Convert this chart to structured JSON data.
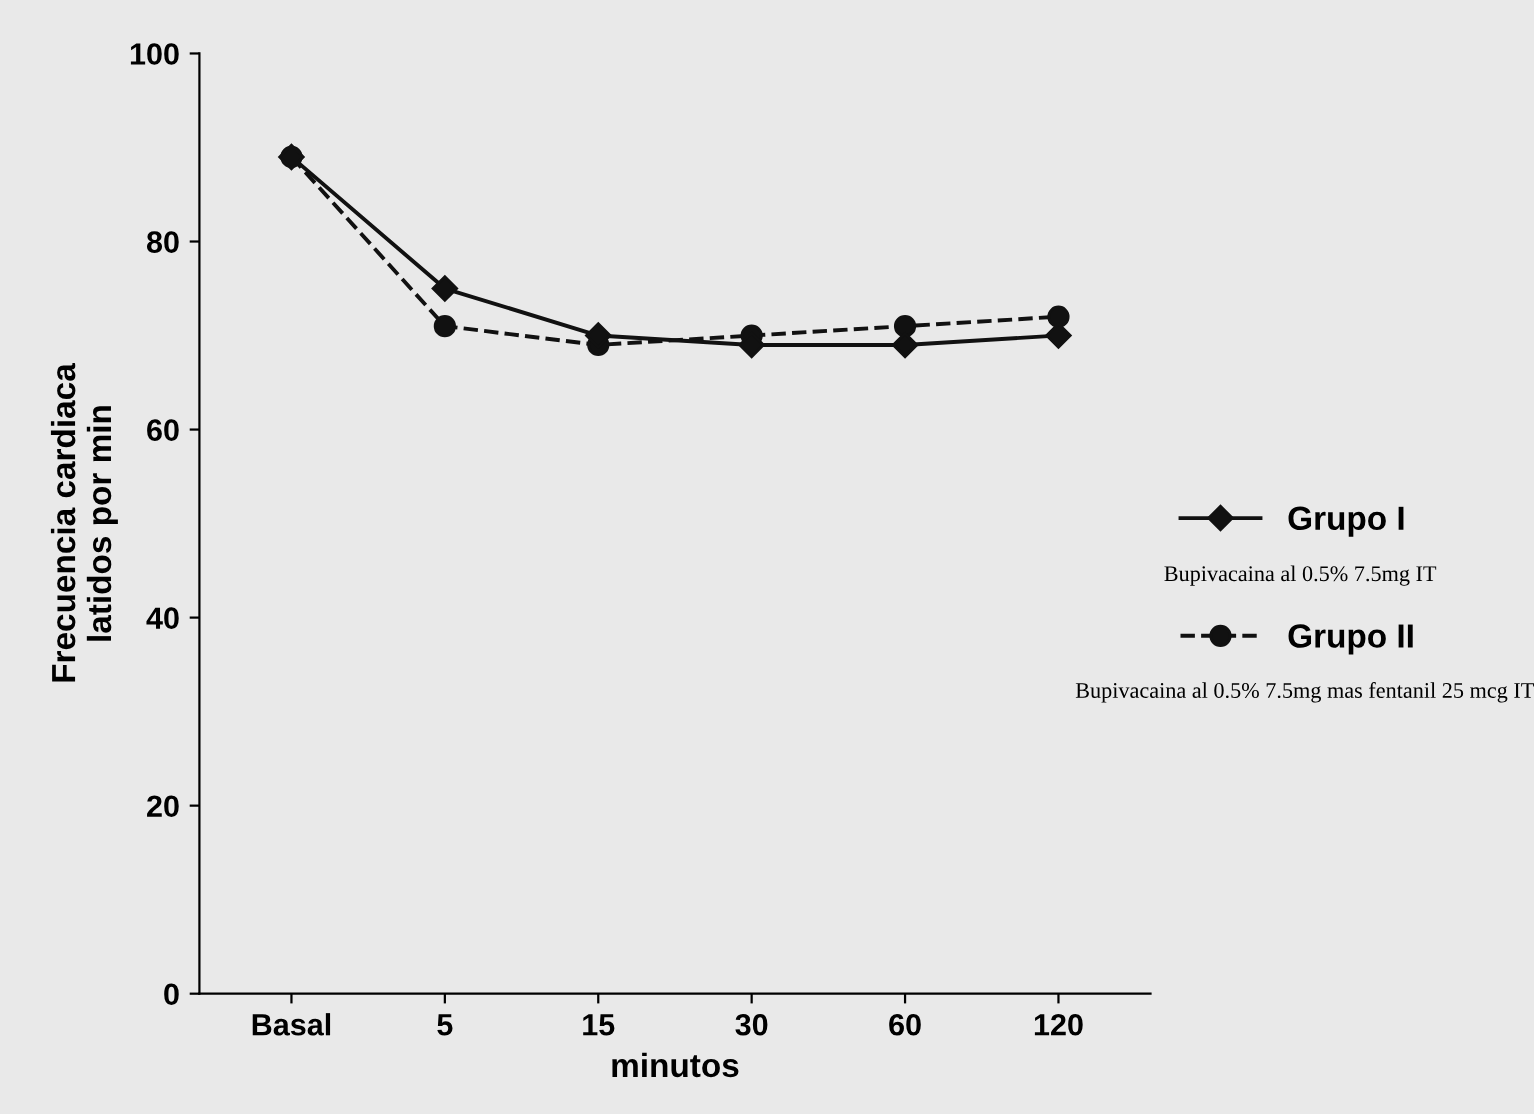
{
  "chart_data": {
    "type": "line",
    "xlabel": "minutos",
    "ylabel": "Frecuencia cardiaca\nlatidos por min",
    "categories": [
      "Basal",
      "5",
      "15",
      "30",
      "60",
      "120"
    ],
    "series": [
      {
        "name": "Grupo I",
        "color": "#111111",
        "values": [
          89,
          75,
          70,
          69,
          69,
          70
        ],
        "marker": "diamond",
        "line_style": "solid"
      },
      {
        "name": "Grupo II",
        "color": "#111111",
        "values": [
          89,
          71,
          69,
          70,
          71,
          72
        ],
        "marker": "circle",
        "line_style": "dashed"
      }
    ],
    "ylim": [
      0,
      100
    ],
    "yticks": [
      0,
      20,
      40,
      60,
      80,
      100
    ],
    "grid": false,
    "legend": "right",
    "annotations": [
      "Bupivacaina al 0.5% 7.5mg IT",
      "Bupivacaina al 0.5% 7.5mg mas fentanil 25 mcg IT"
    ]
  }
}
